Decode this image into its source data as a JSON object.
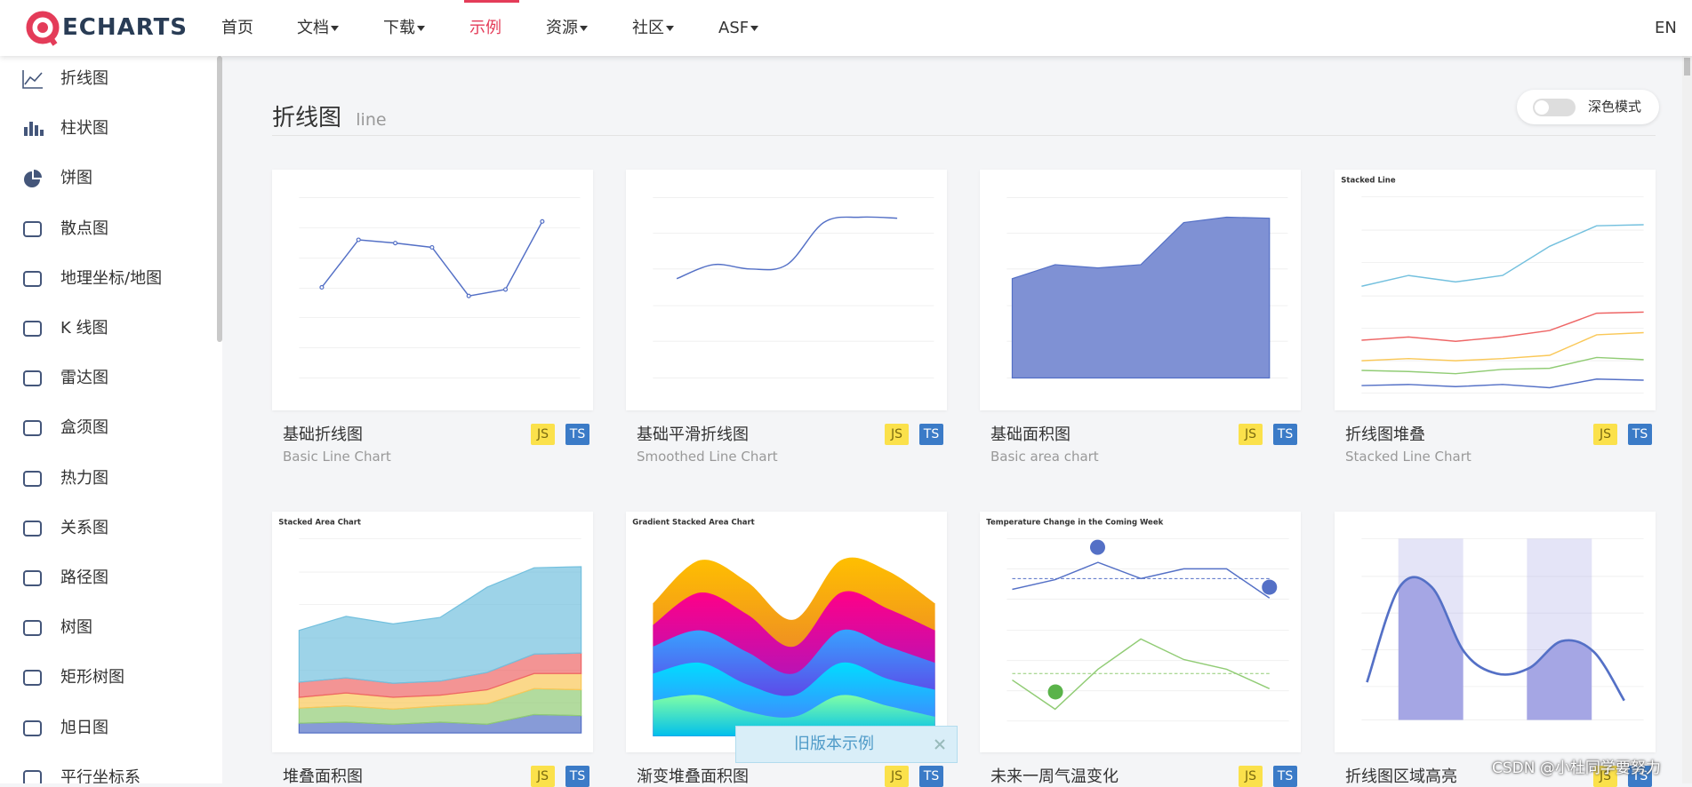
{
  "nav": {
    "logo": "ECHARTS",
    "items": [
      "首页",
      "文档",
      "下载",
      "示例",
      "资源",
      "社区",
      "ASF"
    ],
    "active": 3,
    "dropdown": [
      false,
      true,
      true,
      false,
      true,
      true,
      true
    ],
    "lang": "EN"
  },
  "sidebar": [
    "折线图",
    "柱状图",
    "饼图",
    "散点图",
    "地理坐标/地图",
    "K 线图",
    "雷达图",
    "盒须图",
    "热力图",
    "关系图",
    "路径图",
    "树图",
    "矩形树图",
    "旭日图",
    "平行坐标系"
  ],
  "section": {
    "title": "折线图",
    "subtitle": "line",
    "dark_mode": "深色模式"
  },
  "badges": [
    "JS",
    "TS"
  ],
  "cards": [
    {
      "title": "基础折线图",
      "subtitle": "Basic Line Chart"
    },
    {
      "title": "基础平滑折线图",
      "subtitle": "Smoothed Line Chart"
    },
    {
      "title": "基础面积图",
      "subtitle": "Basic area chart"
    },
    {
      "title": "折线图堆叠",
      "subtitle": "Stacked Line Chart",
      "thumb_title": "Stacked Line"
    },
    {
      "title": "堆叠面积图",
      "thumb_title": "Stacked Area Chart"
    },
    {
      "title": "渐变堆叠面积图",
      "thumb_title": "Gradient Stacked Area Chart"
    },
    {
      "title": "未来一周气温变化",
      "thumb_title": "Temperature Change in the Coming Week"
    },
    {
      "title": "折线图区域高亮"
    }
  ],
  "popup": "旧版本示例",
  "watermark": "CSDN @小杜同学要努力"
}
